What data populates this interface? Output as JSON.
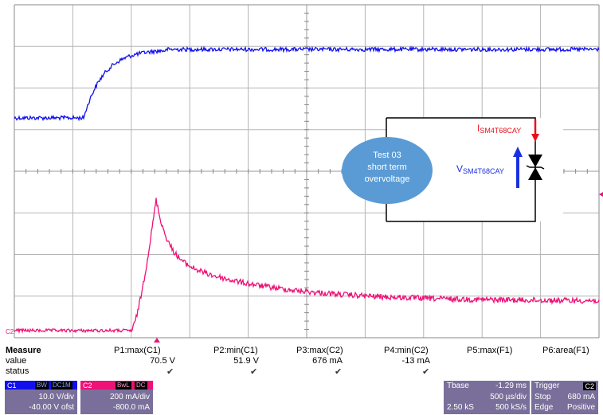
{
  "channels": {
    "c1": {
      "color": "#1010ee",
      "label": "C1",
      "scale": "10.0 V/div",
      "offset": "-40.00 V ofst",
      "tags": [
        "BW",
        "DC1M"
      ]
    },
    "c2": {
      "color": "#ee1177",
      "label": "C2",
      "scale": "200 mA/div",
      "offset": "-800.0 mA",
      "tags": [
        "BwL",
        "DC"
      ]
    }
  },
  "trace_markers": {
    "c2_left": "C2"
  },
  "inset": {
    "bubble_line1": "Test 03",
    "bubble_line2": "short term",
    "bubble_line3": "overvoltage",
    "current_label": "I",
    "current_sub": "SM4T68CAY",
    "voltage_label": "V",
    "voltage_sub": "SM4T68CAY",
    "bubble_color": "#5b9bd5",
    "current_color": "#e8101a",
    "voltage_color": "#1a30e0"
  },
  "measure": {
    "row_labels": [
      "Measure",
      "value",
      "status"
    ],
    "columns": [
      {
        "name": "P1:max(C1)",
        "value": "70.5 V",
        "status": "✔"
      },
      {
        "name": "P2:min(C1)",
        "value": "51.9 V",
        "status": "✔"
      },
      {
        "name": "P3:max(C2)",
        "value": "676 mA",
        "status": "✔"
      },
      {
        "name": "P4:min(C2)",
        "value": "-13 mA",
        "status": "✔"
      },
      {
        "name": "P5:max(F1)",
        "value": "",
        "status": ""
      },
      {
        "name": "P6:area(F1)",
        "value": "",
        "status": ""
      }
    ]
  },
  "timebase": {
    "title": "Tbase",
    "delay": "-1.29 ms",
    "per_div": "500 µs/div",
    "samples": "2.50 kS",
    "rate": "500 kS/s"
  },
  "trigger": {
    "title": "Trigger",
    "channel": "C2",
    "mode": "Stop",
    "level": "680 mA",
    "type": "Edge",
    "slope": "Positive"
  },
  "panel_color": "#7a6f9a"
}
